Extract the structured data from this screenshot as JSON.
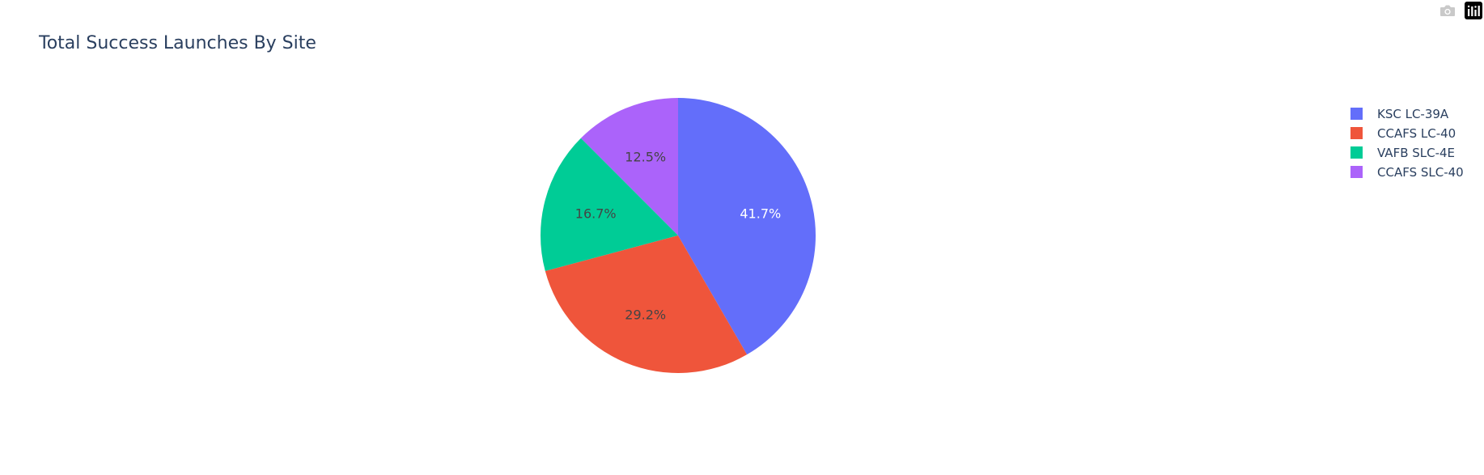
{
  "chart_data": {
    "type": "pie",
    "title": "Total Success Launches By Site",
    "labels": [
      "KSC LC-39A",
      "CCAFS LC-40",
      "VAFB SLC-4E",
      "CCAFS SLC-40"
    ],
    "values": [
      41.7,
      29.2,
      16.7,
      12.5
    ],
    "slice_labels": [
      "41.7%",
      "29.2%",
      "16.7%",
      "12.5%"
    ],
    "legend_placement": "top-right",
    "direction": "clockwise",
    "start_angle_deg": 90,
    "sort": "descending",
    "draw_order": [
      0,
      3,
      2,
      1
    ]
  },
  "colors": {
    "series": [
      "#636efa",
      "#EF553B",
      "#00cc96",
      "#ab63fa"
    ],
    "title_text": "#2a3f5f",
    "legend_text": "#2a3f5f",
    "label_light": "#ffffff",
    "label_dark": "#444444",
    "modebar_icon": "#c9c9c9"
  },
  "modebar": {
    "icons": [
      "camera-icon",
      "plotly-logo-icon"
    ]
  }
}
